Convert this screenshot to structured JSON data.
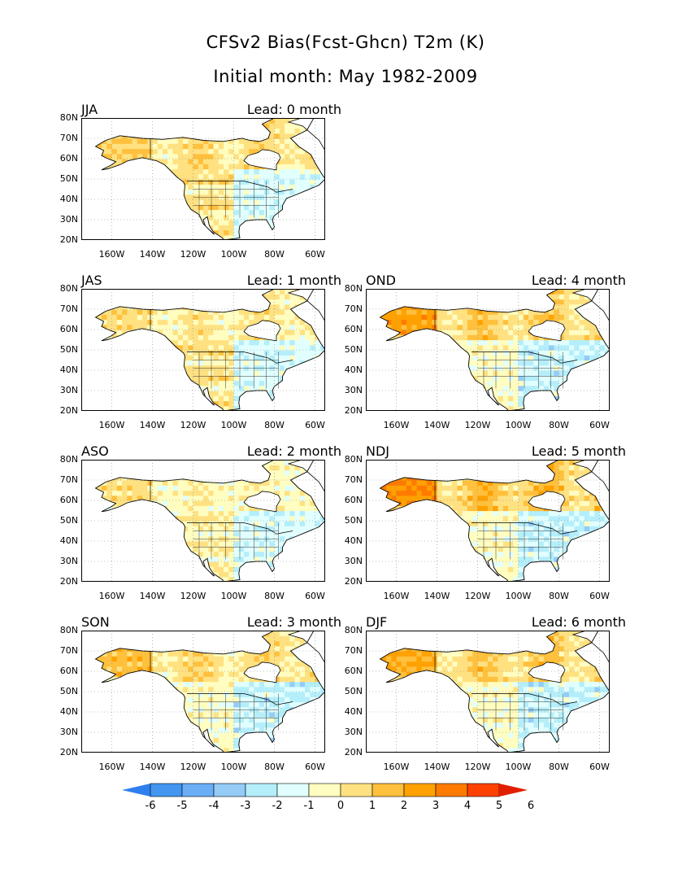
{
  "title": {
    "line1": "CFSv2 Bias(Fcst-Ghcn) T2m (K)",
    "line2": "Initial month: May 1982-2009"
  },
  "panels": [
    {
      "season": "JJA",
      "lead": "Lead: 0 month"
    },
    {
      "season": "JAS",
      "lead": "Lead: 1 month"
    },
    {
      "season": "ASO",
      "lead": "Lead: 2 month"
    },
    {
      "season": "SON",
      "lead": "Lead: 3 month"
    },
    {
      "season": "OND",
      "lead": "Lead: 4 month"
    },
    {
      "season": "NDJ",
      "lead": "Lead: 5 month"
    },
    {
      "season": "DJF",
      "lead": "Lead: 6 month"
    }
  ],
  "colorbar": {
    "labels": [
      "-6",
      "-5",
      "-4",
      "-3",
      "-2",
      "-1",
      "0",
      "1",
      "2",
      "3",
      "4",
      "5",
      "6"
    ],
    "colors": [
      "#2f7fef",
      "#4296f0",
      "#6aaef5",
      "#94cbf7",
      "#b4eefb",
      "#e1ffff",
      "#fffdc0",
      "#ffe181",
      "#ffc03d",
      "#ffa100",
      "#ff7a00",
      "#ff4100",
      "#e11e00"
    ]
  },
  "chart_data": {
    "type": "heatmap",
    "title": "CFSv2 Bias(Fcst-Ghcn) T2m (K)",
    "subtitle": "Initial month: May 1982-2009",
    "unit": "K",
    "xlabel": "",
    "ylabel": "",
    "x_ticks": [
      "160W",
      "140W",
      "120W",
      "100W",
      "80W",
      "60W"
    ],
    "y_ticks": [
      "20N",
      "30N",
      "40N",
      "50N",
      "60N",
      "70N",
      "80N"
    ],
    "xlim": [
      -175,
      -55
    ],
    "ylim": [
      20,
      80
    ],
    "grid": true,
    "levels": [
      -6,
      -5,
      -4,
      -3,
      -2,
      -1,
      0,
      1,
      2,
      3,
      4,
      5,
      6
    ],
    "approx_bias_by_region": [
      {
        "panel": "JJA",
        "lead_months": 0,
        "alaska": 2,
        "northern_canada": 2,
        "western_us": 1.5,
        "eastern_us": -1
      },
      {
        "panel": "JAS",
        "lead_months": 1,
        "alaska": 1.5,
        "northern_canada": 1.5,
        "western_us": 1.5,
        "eastern_us": -1
      },
      {
        "panel": "ASO",
        "lead_months": 2,
        "alaska": 1.5,
        "northern_canada": 1,
        "western_us": 1,
        "eastern_us": -1
      },
      {
        "panel": "SON",
        "lead_months": 3,
        "alaska": 2.5,
        "northern_canada": 2,
        "western_us": 0.5,
        "eastern_us": -1.5
      },
      {
        "panel": "OND",
        "lead_months": 4,
        "alaska": 3.5,
        "northern_canada": 2.5,
        "western_us": 0.5,
        "eastern_us": -1.5
      },
      {
        "panel": "NDJ",
        "lead_months": 5,
        "alaska": 4,
        "northern_canada": 3,
        "western_us": 0.5,
        "eastern_us": -1.5
      },
      {
        "panel": "DJF",
        "lead_months": 6,
        "alaska": 3,
        "northern_canada": 2.5,
        "western_us": 0.5,
        "eastern_us": -1.5
      }
    ]
  }
}
